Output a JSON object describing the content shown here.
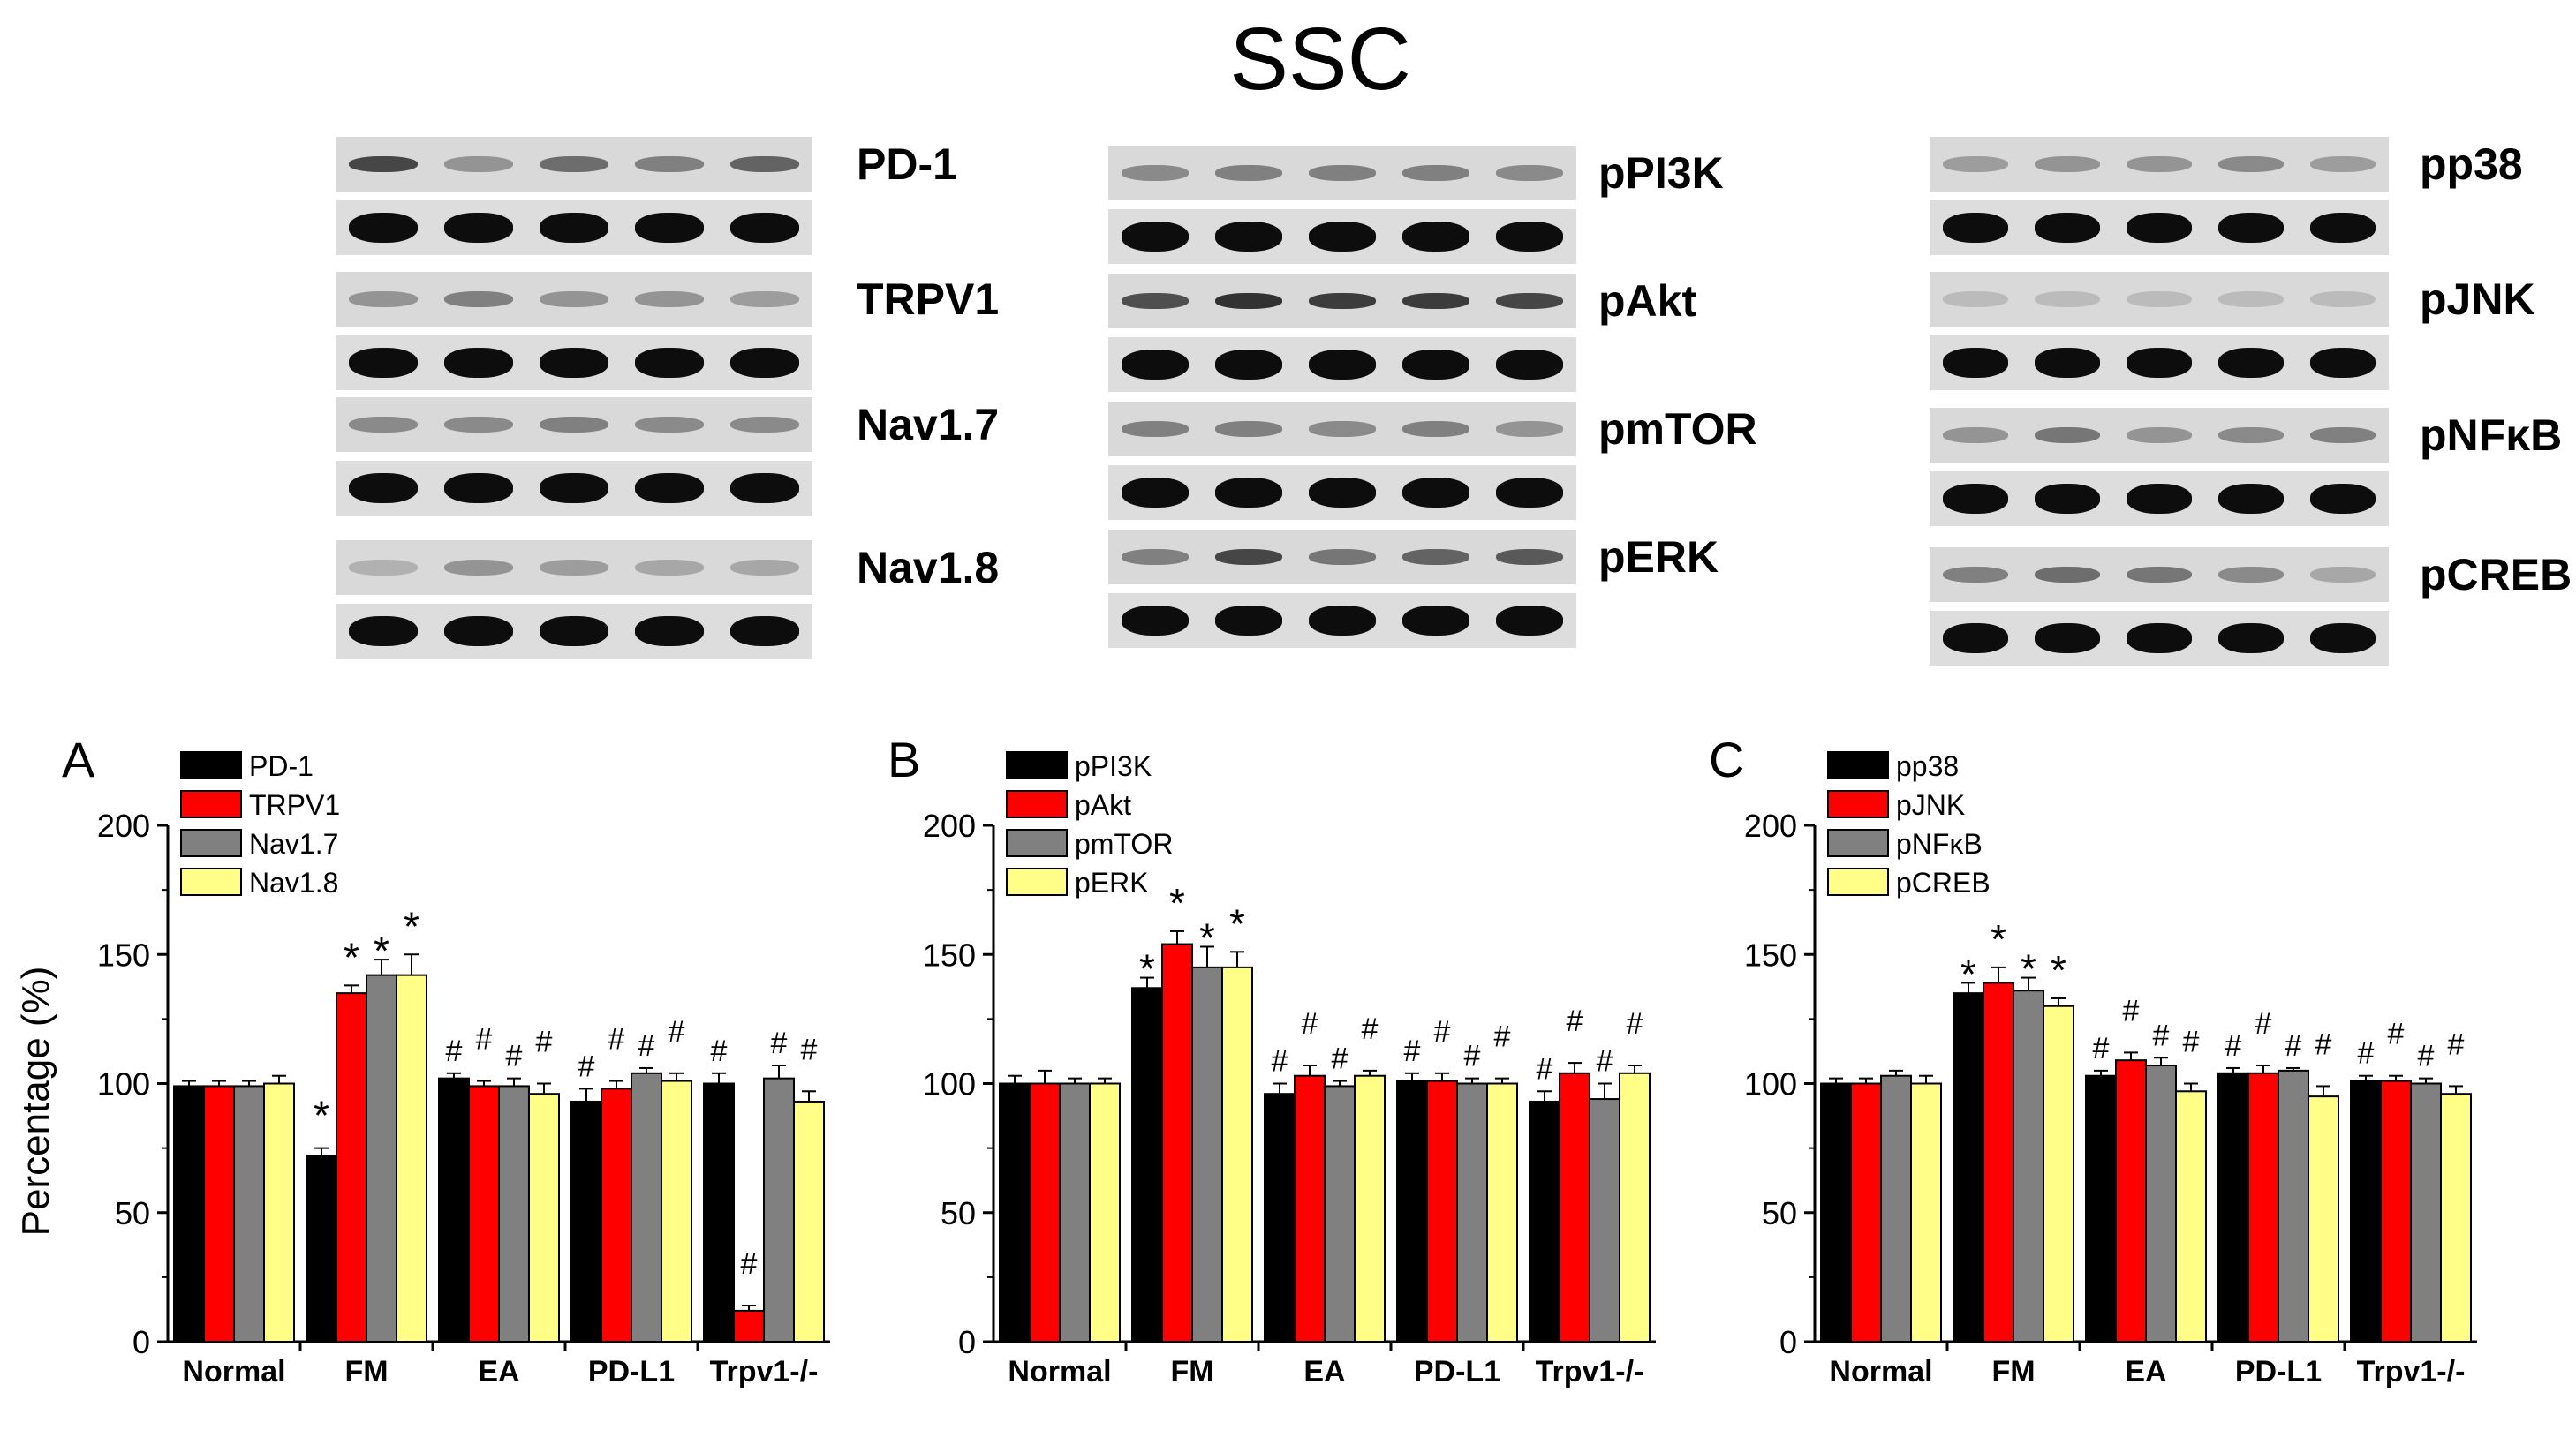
{
  "figure_title": "SSC",
  "blots": [
    {
      "columns": [
        {
          "label": "PD-1",
          "p_intensity": [
            0.75,
            0.35,
            0.55,
            0.45,
            0.6
          ]
        },
        {
          "label": "TRPV1",
          "p_intensity": [
            0.35,
            0.45,
            0.35,
            0.35,
            0.3
          ]
        },
        {
          "label": "Nav1.7",
          "p_intensity": [
            0.4,
            0.4,
            0.45,
            0.4,
            0.4
          ]
        },
        {
          "label": "Nav1.8",
          "p_intensity": [
            0.2,
            0.35,
            0.3,
            0.25,
            0.25
          ]
        }
      ]
    },
    {
      "columns": [
        {
          "label": "pPI3K",
          "p_intensity": [
            0.4,
            0.45,
            0.45,
            0.45,
            0.4
          ]
        },
        {
          "label": "pAkt",
          "p_intensity": [
            0.7,
            0.85,
            0.8,
            0.8,
            0.75
          ]
        },
        {
          "label": "pmTOR",
          "p_intensity": [
            0.45,
            0.45,
            0.4,
            0.45,
            0.35
          ]
        },
        {
          "label": "pERK",
          "p_intensity": [
            0.45,
            0.75,
            0.5,
            0.6,
            0.65
          ]
        }
      ]
    },
    {
      "columns": [
        {
          "label": "pp38",
          "p_intensity": [
            0.3,
            0.35,
            0.35,
            0.4,
            0.3
          ]
        },
        {
          "label": "pJNK",
          "p_intensity": [
            0.15,
            0.15,
            0.15,
            0.15,
            0.15
          ]
        },
        {
          "label": "pNFκB",
          "p_intensity": [
            0.35,
            0.5,
            0.35,
            0.4,
            0.45
          ]
        },
        {
          "label": "pCREB",
          "p_intensity": [
            0.45,
            0.55,
            0.5,
            0.4,
            0.25
          ]
        }
      ]
    }
  ],
  "chart_data": [
    {
      "type": "bar",
      "panel": "A",
      "categories": [
        "Normal",
        "FM",
        "EA",
        "PD-L1",
        "Trpv1-/-"
      ],
      "ylabel": "Percentage (%)",
      "ylim": [
        0,
        200
      ],
      "yticks": [
        0,
        50,
        100,
        150,
        200
      ],
      "legend_position": "top-left",
      "series": [
        {
          "name": "PD-1",
          "color": "#000000",
          "values": [
            99,
            72,
            102,
            93,
            100
          ],
          "errors": [
            2,
            3,
            2,
            5,
            4
          ],
          "marks": [
            "",
            "*",
            "#",
            "#",
            "#"
          ]
        },
        {
          "name": "TRPV1",
          "color": "#ff0000",
          "values": [
            99,
            135,
            99,
            98,
            12
          ],
          "errors": [
            2,
            3,
            2,
            3,
            2
          ],
          "marks": [
            "",
            "*",
            "#",
            "#",
            "#"
          ]
        },
        {
          "name": "Nav1.7",
          "color": "#808080",
          "values": [
            99,
            142,
            99,
            104,
            102
          ],
          "errors": [
            2,
            6,
            3,
            2,
            5
          ],
          "marks": [
            "",
            "*",
            "#",
            "#",
            "#"
          ]
        },
        {
          "name": "Nav1.8",
          "color": "#ffff88",
          "values": [
            100,
            142,
            96,
            101,
            93
          ],
          "errors": [
            3,
            8,
            4,
            3,
            4
          ],
          "marks": [
            "",
            "*",
            "#",
            "#",
            "#"
          ]
        }
      ]
    },
    {
      "type": "bar",
      "panel": "B",
      "categories": [
        "Normal",
        "FM",
        "EA",
        "PD-L1",
        "Trpv1-/-"
      ],
      "ylabel": "",
      "ylim": [
        0,
        200
      ],
      "yticks": [
        0,
        50,
        100,
        150,
        200
      ],
      "legend_position": "top-left",
      "series": [
        {
          "name": "pPI3K",
          "color": "#000000",
          "values": [
            100,
            137,
            96,
            101,
            93
          ],
          "errors": [
            3,
            4,
            4,
            3,
            4
          ],
          "marks": [
            "",
            "*",
            "#",
            "#",
            "#"
          ]
        },
        {
          "name": "pAkt",
          "color": "#ff0000",
          "values": [
            100,
            154,
            103,
            101,
            104
          ],
          "errors": [
            5,
            5,
            4,
            3,
            4
          ],
          "marks": [
            "",
            "*",
            "#",
            "#",
            "#"
          ]
        },
        {
          "name": "pmTOR",
          "color": "#808080",
          "values": [
            100,
            145,
            99,
            100,
            94
          ],
          "errors": [
            2,
            8,
            2,
            2,
            6
          ],
          "marks": [
            "",
            "*",
            "#",
            "#",
            "#"
          ]
        },
        {
          "name": "pERK",
          "color": "#ffff88",
          "values": [
            100,
            145,
            103,
            100,
            104
          ],
          "errors": [
            2,
            6,
            2,
            2,
            3
          ],
          "marks": [
            "",
            "*",
            "#",
            "#",
            "#"
          ]
        }
      ]
    },
    {
      "type": "bar",
      "panel": "C",
      "categories": [
        "Normal",
        "FM",
        "EA",
        "PD-L1",
        "Trpv1-/-"
      ],
      "ylabel": "",
      "ylim": [
        0,
        200
      ],
      "yticks": [
        0,
        50,
        100,
        150,
        200
      ],
      "legend_position": "top-left",
      "series": [
        {
          "name": "pp38",
          "color": "#000000",
          "values": [
            100,
            135,
            103,
            104,
            101
          ],
          "errors": [
            2,
            4,
            2,
            2,
            2
          ],
          "marks": [
            "",
            "*",
            "#",
            "#",
            "#"
          ]
        },
        {
          "name": "pJNK",
          "color": "#ff0000",
          "values": [
            100,
            139,
            109,
            104,
            101
          ],
          "errors": [
            2,
            6,
            3,
            3,
            2
          ],
          "marks": [
            "",
            "*",
            "#",
            "#",
            "#"
          ]
        },
        {
          "name": "pNFκB",
          "color": "#808080",
          "values": [
            103,
            136,
            107,
            105,
            100
          ],
          "errors": [
            2,
            5,
            3,
            1,
            2
          ],
          "marks": [
            "",
            "*",
            "#",
            "#",
            "#"
          ]
        },
        {
          "name": "pCREB",
          "color": "#ffff88",
          "values": [
            100,
            130,
            97,
            95,
            96
          ],
          "errors": [
            3,
            3,
            3,
            4,
            3
          ],
          "marks": [
            "",
            "*",
            "#",
            "#",
            "#"
          ]
        }
      ]
    }
  ]
}
